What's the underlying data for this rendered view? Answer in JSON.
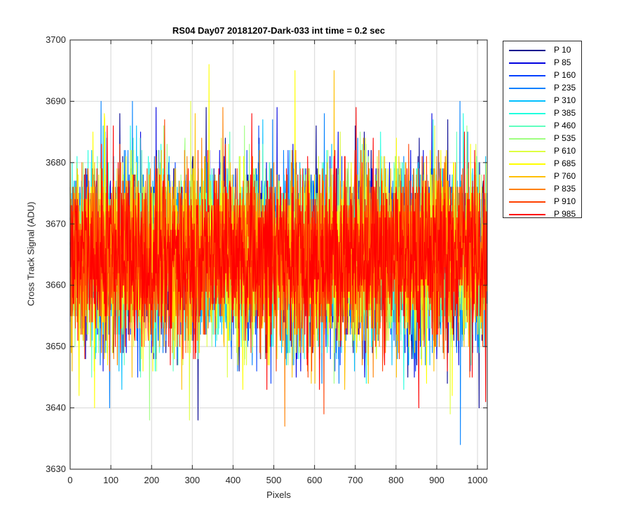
{
  "chart_data": {
    "type": "line",
    "title": "RS04 Day07 20181207-Dark-033 int time = 0.2 sec",
    "xlabel": "Pixels",
    "ylabel": "Cross Track Signal (ADU)",
    "xlim": [
      0,
      1024
    ],
    "ylim": [
      3630,
      3700
    ],
    "xticks": [
      0,
      100,
      200,
      300,
      400,
      500,
      600,
      700,
      800,
      900,
      1000
    ],
    "yticks": [
      3630,
      3640,
      3650,
      3660,
      3670,
      3680,
      3690,
      3700
    ],
    "grid": true,
    "legend_position": "outside-right",
    "noise_model": {
      "mean": 3665,
      "std": 7.0,
      "min": 3634,
      "max": 3696,
      "points_per_series": 1024
    },
    "series": [
      {
        "name": "P 10",
        "color": "#00008F"
      },
      {
        "name": "P 85",
        "color": "#0000E0"
      },
      {
        "name": "P 160",
        "color": "#0040FF"
      },
      {
        "name": "P 235",
        "color": "#0080FF"
      },
      {
        "name": "P 310",
        "color": "#00BFFF"
      },
      {
        "name": "P 385",
        "color": "#20FFDF"
      },
      {
        "name": "P 460",
        "color": "#60FFBF"
      },
      {
        "name": "P 535",
        "color": "#9FFF80"
      },
      {
        "name": "P 610",
        "color": "#DFFF40"
      },
      {
        "name": "P 685",
        "color": "#FFFF00"
      },
      {
        "name": "P 760",
        "color": "#FFBF00"
      },
      {
        "name": "P 835",
        "color": "#FF8000"
      },
      {
        "name": "P 910",
        "color": "#FF4000"
      },
      {
        "name": "P 985",
        "color": "#FF0000"
      }
    ],
    "spikes": [
      {
        "x": 341,
        "y": 3696,
        "series": "P 685"
      },
      {
        "x": 552,
        "y": 3695,
        "series": "P 685"
      },
      {
        "x": 648,
        "y": 3695,
        "series": "P 760"
      },
      {
        "x": 76,
        "y": 3690,
        "series": "P 235"
      },
      {
        "x": 153,
        "y": 3690,
        "series": "P 235"
      },
      {
        "x": 296,
        "y": 3690,
        "series": "P 610"
      },
      {
        "x": 957,
        "y": 3690,
        "series": "P 235"
      },
      {
        "x": 211,
        "y": 3689,
        "series": "P 85"
      },
      {
        "x": 334,
        "y": 3689,
        "series": "P 10"
      },
      {
        "x": 375,
        "y": 3689,
        "series": "P 835"
      },
      {
        "x": 508,
        "y": 3689,
        "series": "P 85"
      },
      {
        "x": 702,
        "y": 3689,
        "series": "P 985"
      },
      {
        "x": 60,
        "y": 3640,
        "series": "P 685"
      },
      {
        "x": 195,
        "y": 3638,
        "series": "P 535"
      },
      {
        "x": 293,
        "y": 3638,
        "series": "P 610"
      },
      {
        "x": 527,
        "y": 3637,
        "series": "P 835"
      },
      {
        "x": 623,
        "y": 3639,
        "series": "P 910"
      },
      {
        "x": 958,
        "y": 3634,
        "series": "P 235"
      },
      {
        "x": 933,
        "y": 3639,
        "series": "P 610"
      },
      {
        "x": 1004,
        "y": 3640,
        "series": "P 10"
      },
      {
        "x": 1020,
        "y": 3641,
        "series": "P 985"
      }
    ]
  }
}
